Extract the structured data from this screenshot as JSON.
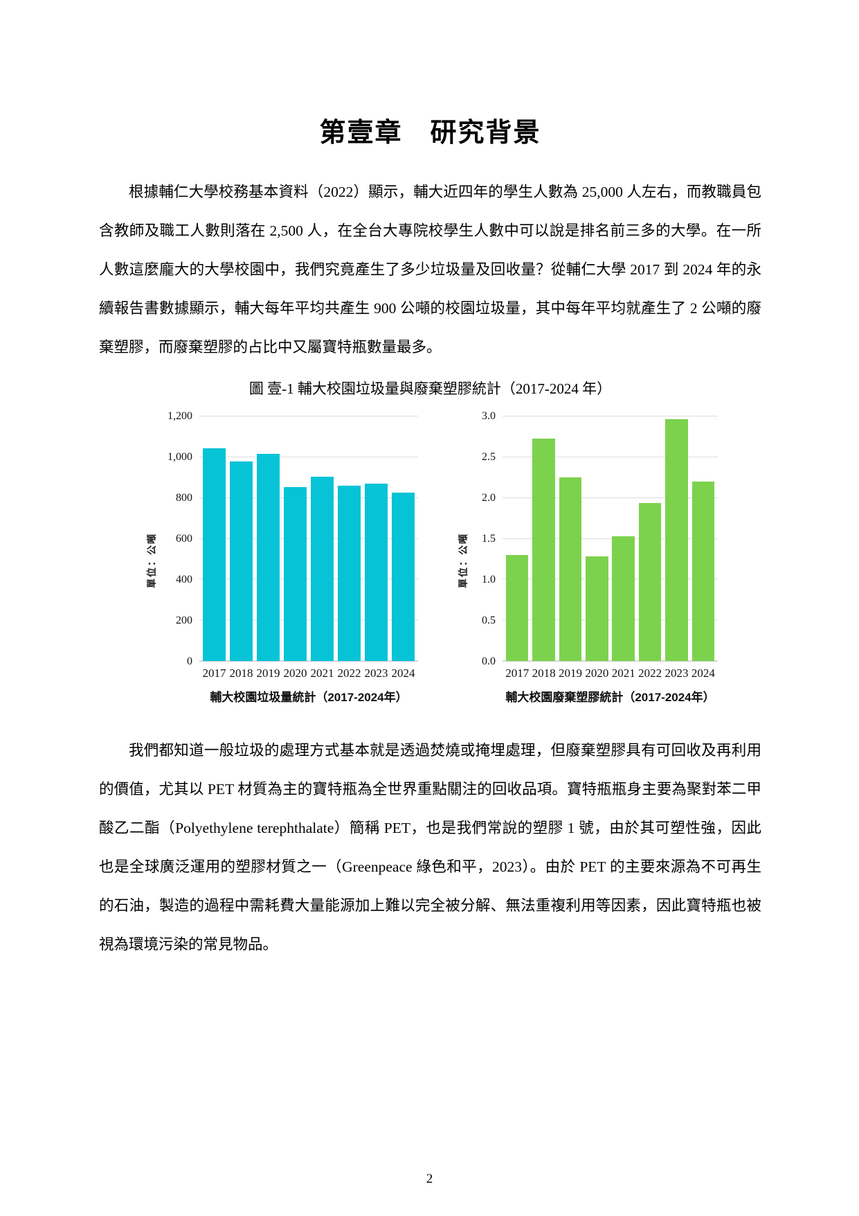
{
  "page": {
    "chapter_title": "第壹章　研究背景",
    "paragraph1": "根據輔仁大學校務基本資料（2022）顯示，輔大近四年的學生人數為 25,000 人左右，而教職員包含教師及職工人數則落在 2,500 人，在全台大專院校學生人數中可以說是排名前三多的大學。在一所人數這麼龐大的大學校園中，我們究竟產生了多少垃圾量及回收量？從輔仁大學 2017 到 2024 年的永續報告書數據顯示，輔大每年平均共產生 900 公噸的校園垃圾量，其中每年平均就產生了 2 公噸的廢棄塑膠，而廢棄塑膠的占比中又屬寶特瓶數量最多。",
    "figure_caption": "圖 壹-1 輔大校園垃圾量與廢棄塑膠統計（2017-2024 年）",
    "paragraph2": "我們都知道一般垃圾的處理方式基本就是透過焚燒或掩埋處理，但廢棄塑膠具有可回收及再利用的價值，尤其以 PET 材質為主的寶特瓶為全世界重點關注的回收品項。寶特瓶瓶身主要為聚對苯二甲酸乙二酯（Polyethylene terephthalate）簡稱 PET，也是我們常說的塑膠 1 號，由於其可塑性強，因此也是全球廣泛運用的塑膠材質之一（Greenpeace 綠色和平，2023）。由於 PET 的主要來源為不可再生的石油，製造的過程中需耗費大量能源加上難以完全被分解、無法重複利用等因素，因此寶特瓶也被視為環境污染的常見物品。",
    "page_number": "2"
  },
  "chart_data": [
    {
      "type": "bar",
      "title": "輔大校園垃圾量統計（2017-2024年）",
      "ylabel": "單位：公噸",
      "categories": [
        "2017",
        "2018",
        "2019",
        "2020",
        "2021",
        "2022",
        "2023",
        "2024"
      ],
      "values": [
        1045,
        978,
        1015,
        853,
        905,
        860,
        870,
        825
      ],
      "ylim": [
        0,
        1200
      ],
      "ytick_values": [
        1200,
        1000,
        800,
        600,
        400,
        200,
        0
      ],
      "ytick_labels": [
        "1,200",
        "1,000",
        "800",
        "600",
        "400",
        "200",
        "0"
      ],
      "bar_color": "#06c3d6",
      "grid": true,
      "legend": "none"
    },
    {
      "type": "bar",
      "title": "輔大校園廢棄塑膠統計（2017-2024年）",
      "ylabel": "單位：公噸",
      "categories": [
        "2017",
        "2018",
        "2019",
        "2020",
        "2021",
        "2022",
        "2023",
        "2024"
      ],
      "values": [
        1.3,
        2.73,
        2.25,
        1.28,
        1.53,
        1.94,
        2.97,
        2.2
      ],
      "ylim": [
        0,
        3.0
      ],
      "ytick_values": [
        3.0,
        2.5,
        2.0,
        1.5,
        1.0,
        0.5,
        0.0
      ],
      "ytick_labels": [
        "3.0",
        "2.5",
        "2.0",
        "1.5",
        "1.0",
        "0.5",
        "0.0"
      ],
      "bar_color": "#7cd24d",
      "grid": true,
      "legend": "none"
    }
  ]
}
